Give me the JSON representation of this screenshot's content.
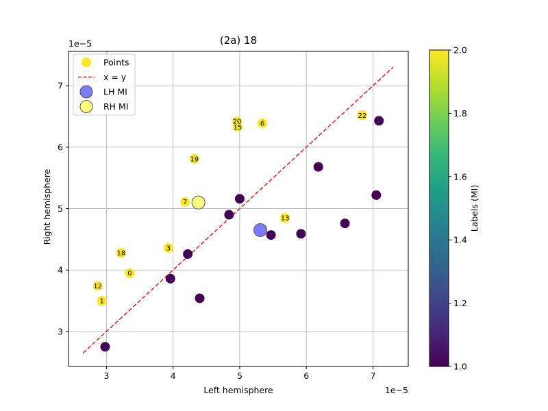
{
  "chart_data": {
    "type": "scatter",
    "title": "(2a) 18",
    "xlabel": "Left hemisphere",
    "ylabel": "Right hemisphere",
    "x_offset_text": "1e−5",
    "y_offset_text": "1e−5",
    "xlim": [
      2.43,
      7.53
    ],
    "ylim": [
      2.43,
      7.56
    ],
    "xticks": [
      3,
      4,
      5,
      6,
      7
    ],
    "yticks": [
      3,
      4,
      5,
      6,
      7
    ],
    "grid": true,
    "legend_position": "top-left",
    "legend": [
      {
        "label": "Points",
        "kind": "dot",
        "color": "#fde725"
      },
      {
        "label": "x = y",
        "kind": "dashed-line",
        "color": "#e31a1c"
      },
      {
        "label": "LH MI",
        "kind": "big-dot",
        "color": "#6464ff"
      },
      {
        "label": "RH MI",
        "kind": "big-dot",
        "color": "#ffff66"
      }
    ],
    "identity_line": {
      "from": [
        2.65,
        2.65
      ],
      "to": [
        7.3,
        7.3
      ],
      "color": "#e31a1c"
    },
    "colorbar": {
      "label": "Labels (MI)",
      "range": [
        1.0,
        2.0
      ],
      "ticks": [
        "1.0",
        "1.2",
        "1.4",
        "1.6",
        "1.8",
        "2.0"
      ],
      "colormap": [
        "#440154",
        "#482878",
        "#3e4989",
        "#31688e",
        "#26828e",
        "#1f9e89",
        "#35b779",
        "#6ece58",
        "#b5de2b",
        "#fde725"
      ]
    },
    "colors": {
      "label_1": "#440154",
      "label_2": "#fde725"
    },
    "series": [
      {
        "name": "Points",
        "points": [
          {
            "x": 3.35,
            "y": 3.95,
            "label": 2,
            "text": "0"
          },
          {
            "x": 2.93,
            "y": 3.5,
            "label": 2,
            "text": "1"
          },
          {
            "x": 3.93,
            "y": 4.36,
            "label": 2,
            "text": "3"
          },
          {
            "x": 5.34,
            "y": 6.39,
            "label": 2,
            "text": "6"
          },
          {
            "x": 4.18,
            "y": 5.11,
            "label": 2,
            "text": "7"
          },
          {
            "x": 2.87,
            "y": 3.74,
            "label": 2,
            "text": "12"
          },
          {
            "x": 5.68,
            "y": 4.85,
            "label": 2,
            "text": "13"
          },
          {
            "x": 4.97,
            "y": 6.33,
            "label": 2,
            "text": "15"
          },
          {
            "x": 3.22,
            "y": 4.28,
            "label": 2,
            "text": "18"
          },
          {
            "x": 4.32,
            "y": 5.81,
            "label": 2,
            "text": "19"
          },
          {
            "x": 4.96,
            "y": 6.42,
            "label": 2,
            "text": "20"
          },
          {
            "x": 6.84,
            "y": 6.52,
            "label": 2,
            "text": "22"
          },
          {
            "x": 2.98,
            "y": 2.75,
            "label": 1,
            "text": ""
          },
          {
            "x": 3.96,
            "y": 3.86,
            "label": 1,
            "text": ""
          },
          {
            "x": 4.4,
            "y": 3.54,
            "label": 1,
            "text": ""
          },
          {
            "x": 4.22,
            "y": 4.26,
            "label": 1,
            "text": ""
          },
          {
            "x": 4.84,
            "y": 4.9,
            "label": 1,
            "text": ""
          },
          {
            "x": 5.0,
            "y": 5.16,
            "label": 1,
            "text": ""
          },
          {
            "x": 5.47,
            "y": 4.57,
            "label": 1,
            "text": ""
          },
          {
            "x": 5.92,
            "y": 4.59,
            "label": 1,
            "text": ""
          },
          {
            "x": 6.18,
            "y": 5.68,
            "label": 1,
            "text": ""
          },
          {
            "x": 6.58,
            "y": 4.76,
            "label": 1,
            "text": ""
          },
          {
            "x": 7.05,
            "y": 5.22,
            "label": 1,
            "text": ""
          },
          {
            "x": 7.09,
            "y": 6.43,
            "label": 1,
            "text": ""
          }
        ]
      },
      {
        "name": "LH MI",
        "points": [
          {
            "x": 5.31,
            "y": 4.65
          }
        ],
        "color": "#6464ff"
      },
      {
        "name": "RH MI",
        "points": [
          {
            "x": 4.38,
            "y": 5.1
          }
        ],
        "color": "#ffff66"
      }
    ]
  }
}
